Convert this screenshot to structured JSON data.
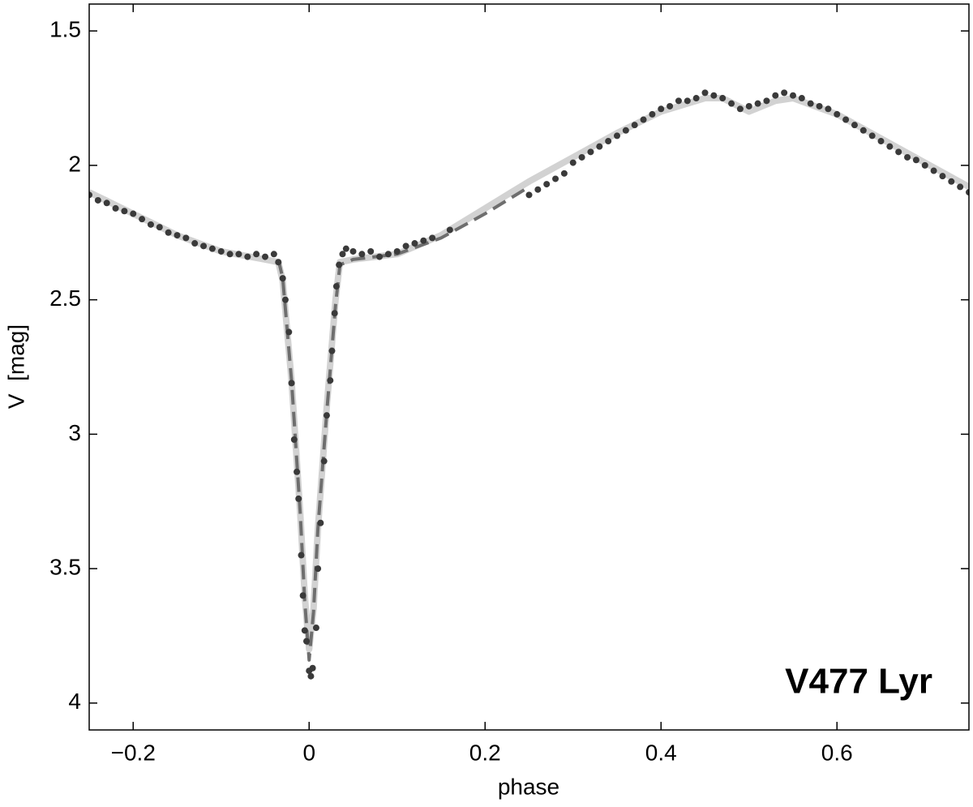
{
  "chart_data": {
    "type": "scatter",
    "xlabel": "phase",
    "ylabel": "V  [mag]",
    "annotation": "V477 Lyr",
    "xlim": [
      -0.25,
      0.75
    ],
    "ylim": [
      1.4,
      4.1
    ],
    "yinverted": true,
    "xticks": [
      {
        "value": -0.2,
        "label": "−0.2"
      },
      0,
      0.2,
      0.4,
      0.6
    ],
    "yticks": [
      1.5,
      2,
      2.5,
      3,
      3.5,
      4
    ],
    "series": [
      {
        "type": "line",
        "color": "#d2d2d2",
        "style": "solid",
        "x": [
          -0.25,
          -0.2,
          -0.15,
          -0.1,
          -0.05,
          -0.035,
          -0.03,
          -0.02,
          -0.01,
          -0.005,
          0,
          0.005,
          0.01,
          0.02,
          0.03,
          0.035,
          0.05,
          0.1,
          0.15,
          0.2,
          0.25,
          0.3,
          0.35,
          0.4,
          0.45,
          0.47,
          0.5,
          0.53,
          0.55,
          0.6,
          0.65,
          0.7,
          0.75
        ],
        "values": [
          2.1,
          2.18,
          2.26,
          2.32,
          2.35,
          2.36,
          2.43,
          2.8,
          3.3,
          3.6,
          3.8,
          3.65,
          3.35,
          2.9,
          2.5,
          2.36,
          2.35,
          2.33,
          2.26,
          2.16,
          2.06,
          1.97,
          1.88,
          1.8,
          1.75,
          1.75,
          1.8,
          1.76,
          1.75,
          1.81,
          1.9,
          1.99,
          2.08
        ]
      },
      {
        "type": "line",
        "color": "#6e6e6e",
        "style": "dashed",
        "x": [
          -0.035,
          -0.03,
          -0.02,
          -0.01,
          -0.005,
          0,
          0.005,
          0.01,
          0.02,
          0.03,
          0.035,
          0.05,
          0.1,
          0.15,
          0.2,
          0.25
        ],
        "values": [
          2.35,
          2.42,
          2.8,
          3.3,
          3.62,
          3.84,
          3.66,
          3.35,
          2.92,
          2.52,
          2.37,
          2.35,
          2.33,
          2.27,
          2.18,
          2.08
        ]
      },
      {
        "type": "scatter",
        "color": "#3a3a3a",
        "x": [
          -0.25,
          -0.24,
          -0.23,
          -0.22,
          -0.21,
          -0.2,
          -0.19,
          -0.18,
          -0.17,
          -0.16,
          -0.15,
          -0.14,
          -0.13,
          -0.12,
          -0.11,
          -0.1,
          -0.09,
          -0.08,
          -0.07,
          -0.06,
          -0.05,
          -0.04,
          -0.035,
          -0.03,
          -0.027,
          -0.023,
          -0.02,
          -0.017,
          -0.014,
          -0.012,
          -0.009,
          -0.007,
          -0.005,
          -0.003,
          0,
          0.002,
          0.004,
          0.008,
          0.01,
          0.013,
          0.017,
          0.02,
          0.024,
          0.026,
          0.029,
          0.031,
          0.034,
          0.038,
          0.042,
          0.05,
          0.06,
          0.07,
          0.08,
          0.09,
          0.1,
          0.11,
          0.12,
          0.13,
          0.14,
          0.16,
          0.25,
          0.26,
          0.27,
          0.28,
          0.29,
          0.3,
          0.31,
          0.32,
          0.33,
          0.34,
          0.35,
          0.36,
          0.37,
          0.38,
          0.39,
          0.4,
          0.41,
          0.42,
          0.43,
          0.44,
          0.45,
          0.46,
          0.47,
          0.48,
          0.49,
          0.5,
          0.51,
          0.52,
          0.53,
          0.54,
          0.55,
          0.56,
          0.57,
          0.58,
          0.59,
          0.6,
          0.61,
          0.62,
          0.63,
          0.64,
          0.65,
          0.66,
          0.67,
          0.68,
          0.69,
          0.7,
          0.71,
          0.72,
          0.73,
          0.74,
          0.75
        ],
        "values": [
          2.11,
          2.13,
          2.14,
          2.16,
          2.17,
          2.18,
          2.2,
          2.22,
          2.23,
          2.25,
          2.26,
          2.27,
          2.29,
          2.3,
          2.31,
          2.32,
          2.33,
          2.33,
          2.34,
          2.33,
          2.34,
          2.33,
          2.36,
          2.42,
          2.5,
          2.62,
          2.81,
          3.02,
          3.14,
          3.24,
          3.45,
          3.6,
          3.73,
          3.77,
          3.88,
          3.9,
          3.87,
          3.72,
          3.5,
          3.33,
          3.1,
          2.93,
          2.8,
          2.69,
          2.55,
          2.45,
          2.37,
          2.33,
          2.31,
          2.32,
          2.33,
          2.32,
          2.34,
          2.33,
          2.32,
          2.3,
          2.29,
          2.28,
          2.27,
          2.24,
          2.11,
          2.09,
          2.07,
          2.05,
          2.03,
          1.99,
          1.97,
          1.95,
          1.93,
          1.91,
          1.89,
          1.87,
          1.85,
          1.83,
          1.81,
          1.79,
          1.78,
          1.76,
          1.76,
          1.75,
          1.73,
          1.74,
          1.75,
          1.77,
          1.79,
          1.78,
          1.77,
          1.76,
          1.74,
          1.73,
          1.74,
          1.75,
          1.77,
          1.78,
          1.79,
          1.81,
          1.83,
          1.85,
          1.87,
          1.89,
          1.91,
          1.93,
          1.95,
          1.97,
          1.98,
          2.0,
          2.02,
          2.04,
          2.06,
          2.08,
          2.1
        ]
      }
    ]
  }
}
